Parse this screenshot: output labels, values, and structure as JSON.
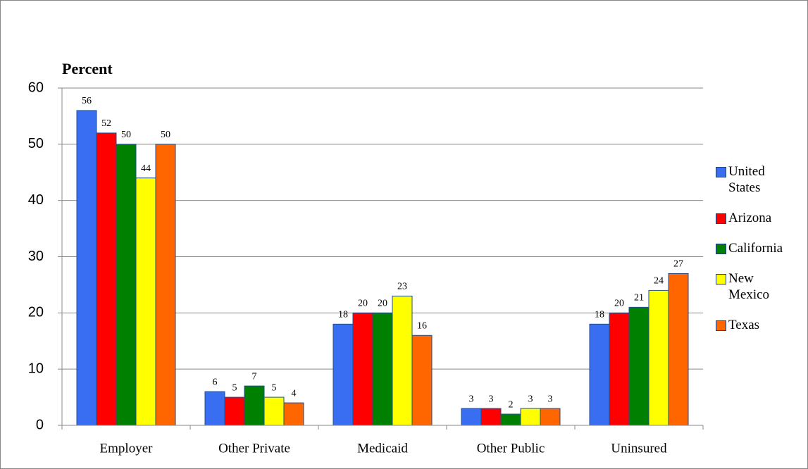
{
  "chart_data": {
    "type": "bar",
    "y_label": "Percent",
    "categories": [
      "Employer",
      "Other Private",
      "Medicaid",
      "Other Public",
      "Uninsured"
    ],
    "series": [
      {
        "name": "United States",
        "color": "#3a6ef2",
        "values": [
          56,
          6,
          18,
          3,
          18
        ]
      },
      {
        "name": "Arizona",
        "color": "#ff0000",
        "values": [
          52,
          5,
          20,
          3,
          20
        ]
      },
      {
        "name": "California",
        "color": "#008000",
        "values": [
          50,
          7,
          20,
          2,
          21
        ]
      },
      {
        "name": "New Mexico",
        "color": "#ffff00",
        "values": [
          44,
          5,
          23,
          3,
          24
        ]
      },
      {
        "name": "Texas",
        "color": "#ff6600",
        "values": [
          50,
          4,
          16,
          3,
          27
        ]
      }
    ],
    "ylim": [
      0,
      60
    ],
    "yticks": [
      0,
      10,
      20,
      30,
      40,
      50,
      60
    ],
    "grid": true
  }
}
